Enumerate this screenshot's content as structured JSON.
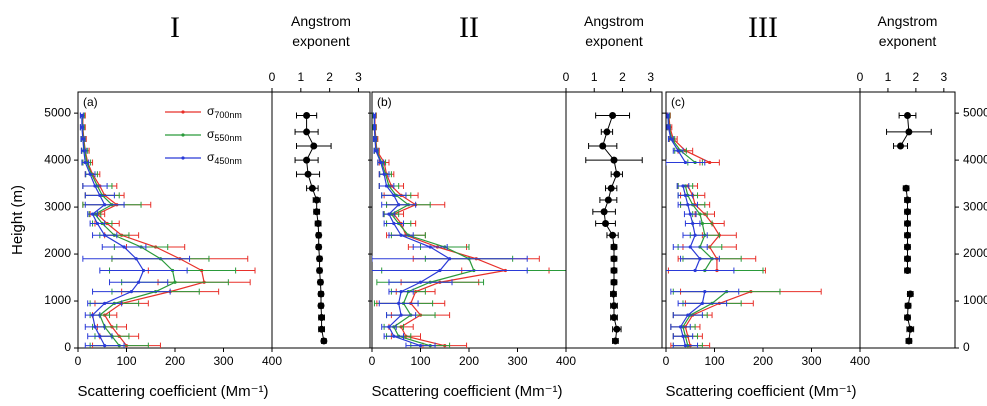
{
  "chart_data": [
    {
      "type": "line",
      "title": "I",
      "label": "(a)",
      "xlabel": "Scattering coefficient (Mm⁻¹)",
      "ylabel": "Height (m)",
      "legend": "upper center",
      "xlim": [
        0,
        400
      ],
      "xticks": [
        0,
        100,
        200,
        300,
        400
      ],
      "ylim": [
        0,
        5450
      ],
      "yticks": [
        0,
        1000,
        2000,
        3000,
        4000,
        5000
      ],
      "y": [
        50,
        250,
        450,
        700,
        950,
        1200,
        1400,
        1650,
        1900,
        2150,
        2400,
        2650,
        2850,
        3050,
        3250,
        3450,
        3700,
        3950,
        4200,
        4450,
        4700,
        4950
      ],
      "series": [
        {
          "name": "σ700nm",
          "color": "#e8302a",
          "values": [
            100,
            85,
            70,
            55,
            90,
            190,
            260,
            255,
            210,
            160,
            90,
            60,
            40,
            80,
            55,
            45,
            30,
            20,
            15,
            12,
            10,
            10
          ],
          "errors": [
            70,
            40,
            30,
            25,
            55,
            100,
            95,
            110,
            140,
            60,
            35,
            25,
            15,
            70,
            40,
            35,
            15,
            10,
            8,
            5,
            5,
            5
          ]
        },
        {
          "name": "σ550nm",
          "color": "#2a9a3a",
          "values": [
            85,
            70,
            55,
            45,
            75,
            160,
            200,
            195,
            170,
            130,
            75,
            50,
            35,
            70,
            50,
            40,
            28,
            18,
            14,
            11,
            9,
            9
          ],
          "errors": [
            60,
            35,
            25,
            20,
            50,
            90,
            110,
            130,
            100,
            55,
            30,
            20,
            12,
            60,
            35,
            30,
            12,
            8,
            6,
            4,
            4,
            4
          ]
        },
        {
          "name": "σ450nm",
          "color": "#2a3ad8",
          "values": [
            55,
            45,
            35,
            30,
            55,
            110,
            125,
            135,
            120,
            95,
            55,
            40,
            30,
            55,
            45,
            35,
            25,
            15,
            12,
            10,
            8,
            8
          ],
          "errors": [
            40,
            25,
            20,
            15,
            35,
            80,
            60,
            90,
            110,
            45,
            25,
            15,
            10,
            40,
            30,
            25,
            10,
            7,
            5,
            4,
            3,
            3
          ]
        }
      ]
    },
    {
      "type": "scatter",
      "xlabel": "Angstrom exponent",
      "color": "#000000",
      "xlim": [
        0,
        3.4
      ],
      "xticks": [
        0,
        1,
        2,
        3
      ],
      "ylim": [
        0,
        5450
      ],
      "y": [
        150,
        400,
        650,
        900,
        1150,
        1400,
        1650,
        1900,
        2150,
        2400,
        2650,
        2900,
        3150,
        3400,
        3700,
        4000,
        4300,
        4600,
        4950
      ],
      "values": [
        1.8,
        1.72,
        1.72,
        1.7,
        1.7,
        1.68,
        1.65,
        1.65,
        1.62,
        1.62,
        1.6,
        1.55,
        1.55,
        1.4,
        1.25,
        1.2,
        1.45,
        1.2,
        1.2
      ],
      "errors": [
        0.08,
        0.1,
        0.1,
        0.08,
        0.08,
        0.08,
        0.08,
        0.08,
        0.08,
        0.08,
        0.1,
        0.1,
        0.12,
        0.2,
        0.4,
        0.4,
        0.6,
        0.4,
        0.35
      ]
    },
    {
      "type": "line",
      "title": "II",
      "label": "(b)",
      "xlabel": "Scattering coefficient (Mm⁻¹)",
      "xlim": [
        0,
        400
      ],
      "xticks": [
        0,
        100,
        200,
        300,
        400
      ],
      "ylim": [
        0,
        5450
      ],
      "yticks": [
        0,
        1000,
        2000,
        3000,
        4000,
        5000
      ],
      "y": [
        50,
        250,
        450,
        700,
        950,
        1200,
        1400,
        1650,
        1900,
        2150,
        2400,
        2650,
        2850,
        3050,
        3250,
        3450,
        3700,
        3950,
        4200,
        4450,
        4700,
        4950
      ],
      "series": [
        {
          "color": "#e8302a",
          "values": [
            150,
            70,
            60,
            100,
            80,
            90,
            140,
            275,
            215,
            135,
            70,
            60,
            45,
            90,
            60,
            40,
            30,
            25,
            10,
            8,
            6,
            6
          ],
          "errors": [
            45,
            30,
            25,
            60,
            70,
            40,
            80,
            90,
            130,
            60,
            40,
            30,
            20,
            60,
            35,
            25,
            15,
            10,
            5,
            4,
            3,
            3
          ]
        },
        {
          "color": "#2a9a3a",
          "values": [
            120,
            55,
            45,
            80,
            65,
            75,
            120,
            210,
            200,
            150,
            75,
            55,
            40,
            75,
            50,
            35,
            28,
            20,
            9,
            7,
            5,
            5
          ],
          "errors": [
            40,
            25,
            20,
            50,
            60,
            35,
            110,
            190,
            90,
            50,
            35,
            25,
            15,
            45,
            30,
            20,
            12,
            8,
            4,
            3,
            3,
            3
          ]
        },
        {
          "color": "#2a3ad8",
          "values": [
            100,
            45,
            35,
            60,
            55,
            60,
            100,
            140,
            160,
            120,
            60,
            45,
            35,
            55,
            45,
            30,
            25,
            18,
            8,
            6,
            5,
            5
          ],
          "errors": [
            30,
            20,
            15,
            30,
            40,
            25,
            65,
            180,
            160,
            35,
            25,
            20,
            12,
            35,
            25,
            15,
            10,
            6,
            4,
            3,
            2,
            2
          ]
        }
      ]
    },
    {
      "type": "scatter",
      "xlabel": "Angstrom exponent",
      "color": "#000000",
      "xlim": [
        0,
        3.4
      ],
      "xticks": [
        0,
        1,
        2,
        3
      ],
      "ylim": [
        0,
        5450
      ],
      "y": [
        150,
        400,
        650,
        900,
        1150,
        1400,
        1650,
        1900,
        2150,
        2400,
        2650,
        2900,
        3150,
        3400,
        3700,
        4000,
        4300,
        4600,
        4950
      ],
      "values": [
        1.75,
        1.8,
        1.7,
        1.7,
        1.68,
        1.7,
        1.7,
        1.7,
        1.7,
        1.65,
        1.4,
        1.35,
        1.5,
        1.6,
        1.8,
        1.7,
        1.3,
        1.45,
        1.65
      ],
      "errors": [
        0.1,
        0.15,
        0.12,
        0.12,
        0.1,
        0.1,
        0.1,
        0.1,
        0.1,
        0.2,
        0.35,
        0.4,
        0.3,
        0.2,
        0.2,
        1.0,
        0.5,
        0.2,
        0.6
      ]
    },
    {
      "type": "line",
      "title": "III",
      "label": "(c)",
      "xlabel": "Scattering coefficient (Mm⁻¹)",
      "yaxis_side": "right",
      "xlim": [
        0,
        400
      ],
      "xticks": [
        0,
        100,
        200,
        300,
        400
      ],
      "ylim": [
        0,
        5450
      ],
      "yticks": [
        0,
        1000,
        2000,
        3000,
        4000,
        5000
      ],
      "y": [
        50,
        250,
        450,
        700,
        950,
        1200,
        1400,
        1650,
        1900,
        2150,
        2400,
        2650,
        2850,
        3050,
        3250,
        3450,
        3700,
        3950,
        4200,
        4450,
        4700,
        4950
      ],
      "series": [
        {
          "color": "#e8302a",
          "values": [
            50,
            45,
            40,
            55,
            110,
            175,
            null,
            105,
            105,
            90,
            110,
            95,
            80,
            60,
            55,
            45,
            null,
            90,
            40,
            15,
            8,
            6
          ],
          "errors": [
            40,
            30,
            30,
            40,
            70,
            145,
            null,
            100,
            80,
            55,
            35,
            25,
            20,
            30,
            25,
            20,
            null,
            20,
            15,
            8,
            4,
            3
          ]
        },
        {
          "color": "#2a9a3a",
          "values": [
            45,
            40,
            35,
            50,
            95,
            125,
            null,
            80,
            95,
            70,
            80,
            75,
            70,
            55,
            45,
            40,
            null,
            60,
            30,
            12,
            6,
            5
          ],
          "errors": [
            30,
            25,
            25,
            35,
            60,
            110,
            null,
            120,
            60,
            45,
            30,
            20,
            15,
            25,
            20,
            15,
            null,
            15,
            12,
            6,
            3,
            3
          ]
        },
        {
          "color": "#2a3ad8",
          "values": [
            40,
            35,
            30,
            45,
            75,
            80,
            null,
            60,
            70,
            50,
            60,
            55,
            50,
            45,
            40,
            35,
            null,
            40,
            25,
            10,
            5,
            4
          ],
          "errors": [
            25,
            20,
            20,
            30,
            50,
            70,
            null,
            80,
            40,
            35,
            25,
            15,
            12,
            20,
            15,
            12,
            null,
            40,
            10,
            5,
            3,
            2
          ]
        }
      ]
    },
    {
      "type": "scatter",
      "xlabel": "Angstrom exponent",
      "color": "#000000",
      "xlim": [
        0,
        3.4
      ],
      "xticks": [
        0,
        1,
        2,
        3
      ],
      "ylim": [
        0,
        5450
      ],
      "y": [
        150,
        400,
        650,
        900,
        1150,
        1400,
        1650,
        1900,
        2150,
        2400,
        2650,
        2900,
        3150,
        3400,
        3700,
        4000,
        4300,
        4600,
        4950
      ],
      "values": [
        1.75,
        1.8,
        1.7,
        1.72,
        1.8,
        null,
        1.7,
        1.7,
        1.7,
        1.7,
        1.7,
        1.7,
        1.7,
        1.65,
        null,
        null,
        1.45,
        1.75,
        1.7
      ],
      "errors": [
        0.1,
        0.12,
        0.1,
        0.1,
        0.1,
        null,
        0.1,
        0.1,
        0.1,
        0.1,
        0.1,
        0.1,
        0.1,
        0.1,
        null,
        null,
        0.25,
        0.8,
        0.3
      ]
    }
  ]
}
